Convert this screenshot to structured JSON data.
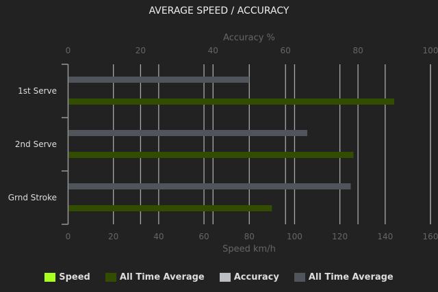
{
  "chart_data": {
    "type": "bar",
    "orientation": "horizontal",
    "title": "AVERAGE SPEED / ACCURACY",
    "categories": [
      "1st Serve",
      "2nd Serve",
      "Grnd Stroke"
    ],
    "axes": {
      "bottom": {
        "label": "Speed km/h",
        "range": [
          0,
          160
        ],
        "ticks": [
          0,
          20,
          40,
          60,
          80,
          100,
          120,
          140,
          160
        ]
      },
      "top": {
        "label": "Accuracy %",
        "range": [
          0,
          100
        ],
        "ticks": [
          0,
          20,
          40,
          60,
          80,
          100
        ]
      }
    },
    "grid": true,
    "legend_placement": "bottom",
    "series": [
      {
        "name": "Speed",
        "axis": "bottom",
        "color": "#aaff22",
        "values": [
          null,
          null,
          null
        ]
      },
      {
        "name": "All Time Average",
        "axis": "bottom",
        "color": "#334d00",
        "values": [
          144,
          126,
          90
        ]
      },
      {
        "name": "Accuracy",
        "axis": "top",
        "color": "#bbbec2",
        "values": [
          null,
          null,
          null
        ]
      },
      {
        "name": "All Time Average",
        "axis": "top",
        "color": "#50555b",
        "values": [
          50,
          66,
          78
        ]
      }
    ]
  }
}
